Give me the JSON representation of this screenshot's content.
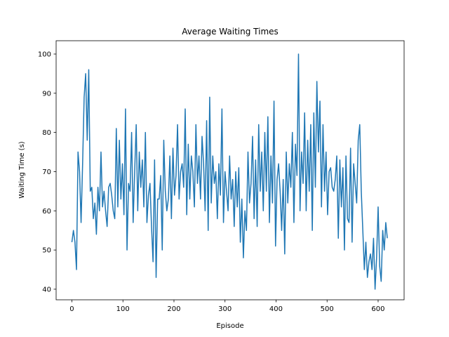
{
  "chart_data": {
    "type": "line",
    "title": "Average Waiting Times",
    "x_label": "Episode",
    "y_label": "Waiting Time (s)",
    "color": "#1f77b4",
    "x": [
      0,
      3,
      6,
      9,
      12,
      15,
      18,
      21,
      24,
      27,
      30,
      33,
      36,
      39,
      42,
      45,
      48,
      51,
      54,
      57,
      60,
      63,
      66,
      69,
      72,
      75,
      78,
      81,
      84,
      87,
      90,
      93,
      96,
      99,
      102,
      105,
      108,
      111,
      114,
      117,
      120,
      123,
      126,
      129,
      132,
      135,
      138,
      141,
      144,
      147,
      150,
      153,
      156,
      159,
      162,
      165,
      168,
      171,
      174,
      177,
      180,
      183,
      186,
      189,
      192,
      195,
      198,
      201,
      204,
      207,
      210,
      213,
      216,
      219,
      222,
      225,
      228,
      231,
      234,
      237,
      240,
      243,
      246,
      249,
      252,
      255,
      258,
      261,
      264,
      267,
      270,
      273,
      276,
      279,
      282,
      285,
      288,
      291,
      294,
      297,
      300,
      303,
      306,
      309,
      312,
      315,
      318,
      321,
      324,
      327,
      330,
      333,
      336,
      339,
      342,
      345,
      348,
      351,
      354,
      357,
      360,
      363,
      366,
      369,
      372,
      375,
      378,
      381,
      384,
      387,
      390,
      393,
      396,
      399,
      402,
      405,
      408,
      411,
      414,
      417,
      420,
      423,
      426,
      429,
      432,
      435,
      438,
      441,
      444,
      447,
      450,
      453,
      456,
      459,
      462,
      465,
      468,
      471,
      474,
      477,
      480,
      483,
      486,
      489,
      492,
      495,
      498,
      501,
      504,
      507,
      510,
      513,
      516,
      519,
      522,
      525,
      528,
      531,
      534,
      537,
      540,
      543,
      546,
      549,
      552,
      555,
      558,
      561,
      564,
      567,
      570,
      573,
      576,
      579,
      582,
      585,
      588,
      591,
      594,
      597,
      600,
      603,
      606,
      609,
      612,
      615,
      618
    ],
    "values": [
      52,
      55,
      52,
      45,
      75,
      70,
      57,
      72,
      89,
      95,
      78,
      96,
      65,
      66,
      58,
      62,
      54,
      66,
      60,
      75,
      61,
      65,
      60,
      56,
      66,
      67,
      64,
      60,
      58,
      81,
      61,
      78,
      63,
      72,
      59,
      86,
      50,
      67,
      65,
      80,
      57,
      70,
      82,
      60,
      75,
      66,
      73,
      61,
      80,
      57,
      64,
      67,
      56,
      47,
      73,
      43,
      63,
      63,
      69,
      50,
      78,
      65,
      60,
      63,
      74,
      58,
      76,
      64,
      69,
      82,
      63,
      70,
      72,
      66,
      86,
      59,
      77,
      63,
      74,
      70,
      61,
      82,
      67,
      74,
      63,
      79,
      72,
      60,
      83,
      55,
      89,
      62,
      74,
      67,
      70,
      58,
      72,
      64,
      86,
      57,
      70,
      65,
      60,
      74,
      63,
      68,
      56,
      70,
      61,
      71,
      52,
      63,
      48,
      60,
      55,
      75,
      62,
      67,
      79,
      58,
      73,
      56,
      82,
      65,
      75,
      60,
      80,
      65,
      84,
      57,
      74,
      62,
      88,
      51,
      68,
      72,
      65,
      55,
      68,
      49,
      75,
      62,
      72,
      66,
      80,
      57,
      77,
      69,
      100,
      60,
      75,
      67,
      85,
      60,
      78,
      65,
      82,
      55,
      85,
      66,
      93,
      75,
      88,
      61,
      82,
      65,
      75,
      59,
      70,
      71,
      66,
      65,
      68,
      74,
      53,
      73,
      61,
      71,
      50,
      74,
      58,
      57,
      76,
      52,
      72,
      67,
      62,
      78,
      82,
      65,
      55,
      45,
      52,
      43,
      47,
      49,
      45,
      53,
      40,
      48,
      61,
      46,
      42,
      55,
      50,
      57,
      53
    ],
    "xlim": [
      -30.9,
      650.9
    ],
    "ylim": [
      37.3,
      103.4
    ],
    "xticks": [
      0,
      100,
      200,
      300,
      400,
      500,
      600
    ],
    "yticks": [
      40,
      50,
      60,
      70,
      80,
      90,
      100
    ]
  }
}
